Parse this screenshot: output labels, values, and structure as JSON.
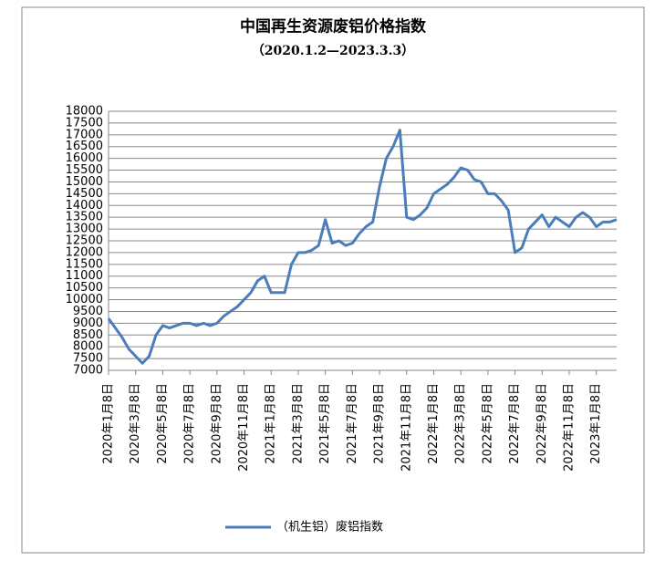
{
  "chart_data": {
    "type": "line",
    "title": "中国再生资源废铝价格指数",
    "subtitle": "（2020.1.2—2023.3.3）",
    "categories": [
      "2020年1月8日",
      null,
      null,
      null,
      "2020年3月8日",
      null,
      null,
      null,
      "2020年5月8日",
      null,
      null,
      null,
      "2020年7月8日",
      null,
      null,
      null,
      "2020年9月8日",
      null,
      null,
      null,
      "2020年11月8日",
      null,
      null,
      null,
      "2021年1月8日",
      null,
      null,
      null,
      "2021年3月8日",
      null,
      null,
      null,
      "2021年5月8日",
      null,
      null,
      null,
      "2021年7月8日",
      null,
      null,
      null,
      "2021年9月8日",
      null,
      null,
      null,
      "2021年11月8日",
      null,
      null,
      null,
      "2022年1月8日",
      null,
      null,
      null,
      "2022年3月8日",
      null,
      null,
      null,
      "2022年5月8日",
      null,
      null,
      null,
      "2022年7月8日",
      null,
      null,
      null,
      "2022年9月8日",
      null,
      null,
      null,
      "2022年11月8日",
      null,
      null,
      null,
      "2023年1月8日",
      null,
      null,
      null
    ],
    "series": [
      {
        "name": "（机生铝）废铝指数",
        "color": "#4a7ebb",
        "values": [
          9200,
          8800,
          8400,
          7900,
          7600,
          7300,
          7600,
          8500,
          8900,
          8800,
          8900,
          9000,
          9000,
          8900,
          9000,
          8900,
          9000,
          9300,
          9500,
          9700,
          10000,
          10300,
          10800,
          11000,
          10300,
          10300,
          10300,
          11500,
          12000,
          12000,
          12100,
          12300,
          13400,
          12400,
          12500,
          12300,
          12400,
          12800,
          13100,
          13300,
          14800,
          16000,
          16500,
          17200,
          13500,
          13400,
          13600,
          13900,
          14500,
          14700,
          14900,
          15200,
          15600,
          15500,
          15100,
          15000,
          14500,
          14500,
          14200,
          13800,
          12000,
          12200,
          13000,
          13300,
          13600,
          13100,
          13500,
          13300,
          13100,
          13500,
          13700,
          13500,
          13100,
          13300,
          13300,
          13400
        ]
      }
    ],
    "ylim": [
      7000,
      18000
    ],
    "yticks": [
      7000,
      7500,
      8000,
      8500,
      9000,
      9500,
      10000,
      10500,
      11000,
      11500,
      12000,
      12500,
      13000,
      13500,
      14000,
      14500,
      15000,
      15500,
      16000,
      16500,
      17000,
      17500,
      18000
    ],
    "grid": true,
    "legend": "bottom"
  }
}
